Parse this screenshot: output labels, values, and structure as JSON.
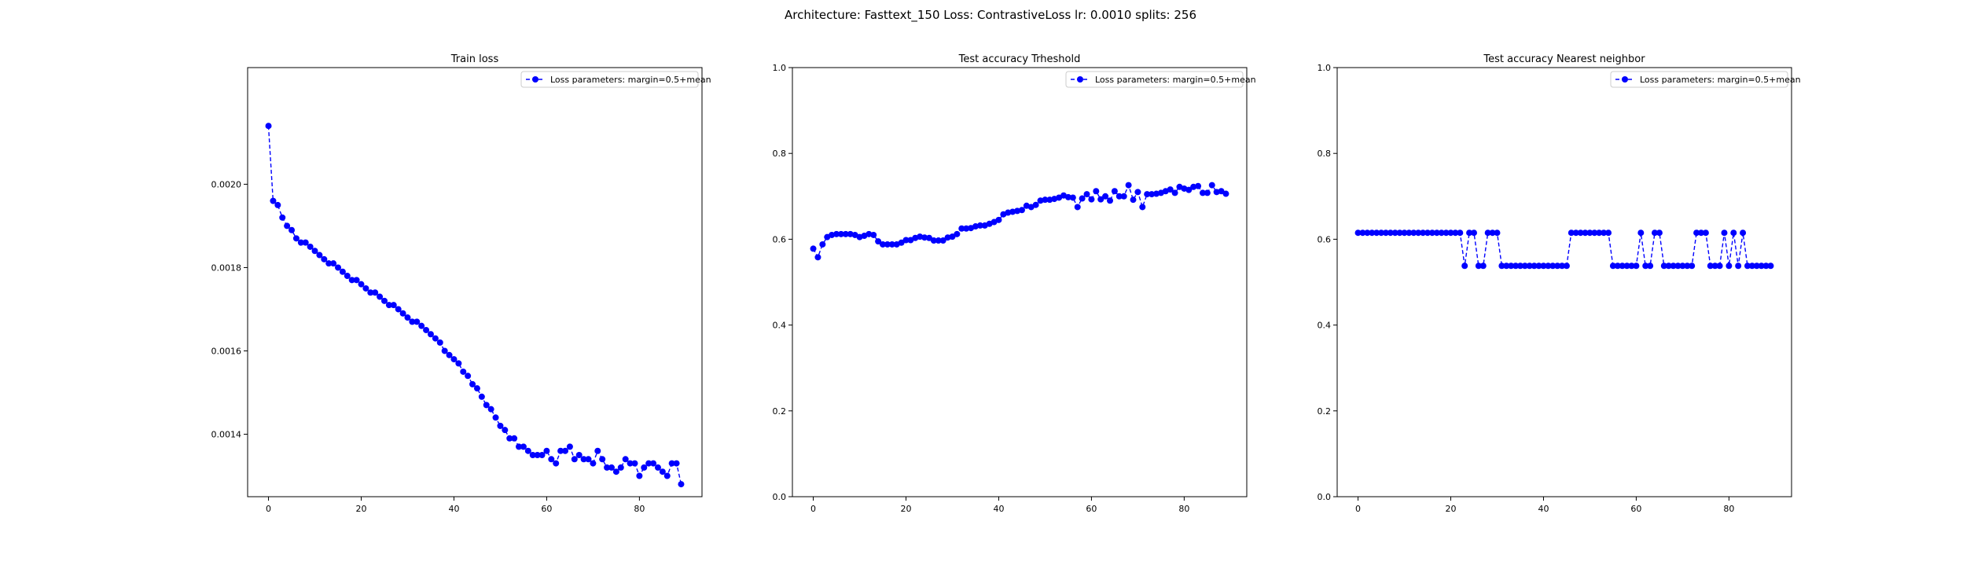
{
  "suptitle": "Architecture: Fasttext_150 Loss: ContrastiveLoss lr: 0.0010 splits: 256",
  "colors": {
    "series": "#0000ff",
    "axes": "#000000",
    "background": "#ffffff"
  },
  "chart_data": [
    {
      "type": "line",
      "title": "Train loss",
      "xlabel": "",
      "ylabel": "",
      "xlim": [
        -4.5,
        93.5
      ],
      "ylim": [
        0.00125,
        0.00228
      ],
      "xticks": [
        0,
        20,
        40,
        60,
        80
      ],
      "xtick_labels": [
        "0",
        "20",
        "40",
        "60",
        "80"
      ],
      "yticks": [
        0.0014,
        0.0016,
        0.0018,
        0.002
      ],
      "ytick_labels": [
        "0.0014",
        "0.0016",
        "0.0018",
        "0.0020"
      ],
      "grid": false,
      "legend_position": "top-right",
      "series": [
        {
          "name": "Loss parameters: margin=0.5+mean",
          "marker": "o",
          "linestyle": "dashed",
          "x": [
            0,
            1,
            2,
            3,
            4,
            5,
            6,
            7,
            8,
            9,
            10,
            11,
            12,
            13,
            14,
            15,
            16,
            17,
            18,
            19,
            20,
            21,
            22,
            23,
            24,
            25,
            26,
            27,
            28,
            29,
            30,
            31,
            32,
            33,
            34,
            35,
            36,
            37,
            38,
            39,
            40,
            41,
            42,
            43,
            44,
            45,
            46,
            47,
            48,
            49,
            50,
            51,
            52,
            53,
            54,
            55,
            56,
            57,
            58,
            59,
            60,
            61,
            62,
            63,
            64,
            65,
            66,
            67,
            68,
            69,
            70,
            71,
            72,
            73,
            74,
            75,
            76,
            77,
            78,
            79,
            80,
            81,
            82,
            83,
            84,
            85,
            86,
            87,
            88,
            89
          ],
          "y": [
            0.00214,
            0.00196,
            0.00195,
            0.00192,
            0.0019,
            0.00189,
            0.00187,
            0.00186,
            0.00186,
            0.00185,
            0.00184,
            0.00183,
            0.00182,
            0.00181,
            0.00181,
            0.0018,
            0.00179,
            0.00178,
            0.00177,
            0.00177,
            0.00176,
            0.00175,
            0.00174,
            0.00174,
            0.00173,
            0.00172,
            0.00171,
            0.00171,
            0.0017,
            0.00169,
            0.00168,
            0.00167,
            0.00167,
            0.00166,
            0.00165,
            0.00164,
            0.00163,
            0.00162,
            0.0016,
            0.00159,
            0.00158,
            0.00157,
            0.00155,
            0.00154,
            0.00152,
            0.00151,
            0.00149,
            0.00147,
            0.00146,
            0.00144,
            0.00142,
            0.00141,
            0.00139,
            0.00139,
            0.00137,
            0.00137,
            0.00136,
            0.00135,
            0.00135,
            0.00135,
            0.00136,
            0.00134,
            0.00133,
            0.00136,
            0.00136,
            0.00137,
            0.00134,
            0.00135,
            0.00134,
            0.00134,
            0.00133,
            0.00136,
            0.00134,
            0.00132,
            0.00132,
            0.00131,
            0.00132,
            0.00134,
            0.00133,
            0.00133,
            0.0013,
            0.00132,
            0.00133,
            0.00133,
            0.00132,
            0.00131,
            0.0013,
            0.00133,
            0.00133,
            0.00128
          ]
        }
      ]
    },
    {
      "type": "line",
      "title": "Test accuracy Trheshold",
      "xlabel": "",
      "ylabel": "",
      "xlim": [
        -4.5,
        93.5
      ],
      "ylim": [
        0.0,
        1.0
      ],
      "xticks": [
        0,
        20,
        40,
        60,
        80
      ],
      "xtick_labels": [
        "0",
        "20",
        "40",
        "60",
        "80"
      ],
      "yticks": [
        0.0,
        0.2,
        0.4,
        0.6,
        0.8,
        1.0
      ],
      "ytick_labels": [
        "0.0",
        "0.2",
        "0.4",
        "0.6",
        "0.8",
        "1.0"
      ],
      "grid": false,
      "legend_position": "top-right",
      "series": [
        {
          "name": "Loss parameters: margin=0.5+mean",
          "marker": "o",
          "linestyle": "dashed",
          "x": [
            0,
            1,
            2,
            3,
            4,
            5,
            6,
            7,
            8,
            9,
            10,
            11,
            12,
            13,
            14,
            15,
            16,
            17,
            18,
            19,
            20,
            21,
            22,
            23,
            24,
            25,
            26,
            27,
            28,
            29,
            30,
            31,
            32,
            33,
            34,
            35,
            36,
            37,
            38,
            39,
            40,
            41,
            42,
            43,
            44,
            45,
            46,
            47,
            48,
            49,
            50,
            51,
            52,
            53,
            54,
            55,
            56,
            57,
            58,
            59,
            60,
            61,
            62,
            63,
            64,
            65,
            66,
            67,
            68,
            69,
            70,
            71,
            72,
            73,
            74,
            75,
            76,
            77,
            78,
            79,
            80,
            81,
            82,
            83,
            84,
            85,
            86,
            87,
            88,
            89
          ],
          "y": [
            0.578,
            0.558,
            0.588,
            0.605,
            0.61,
            0.612,
            0.612,
            0.612,
            0.612,
            0.61,
            0.605,
            0.608,
            0.612,
            0.61,
            0.595,
            0.588,
            0.588,
            0.588,
            0.588,
            0.592,
            0.598,
            0.598,
            0.603,
            0.606,
            0.604,
            0.603,
            0.597,
            0.597,
            0.597,
            0.604,
            0.606,
            0.612,
            0.625,
            0.625,
            0.626,
            0.63,
            0.632,
            0.632,
            0.636,
            0.64,
            0.645,
            0.658,
            0.662,
            0.664,
            0.666,
            0.668,
            0.678,
            0.675,
            0.68,
            0.69,
            0.692,
            0.692,
            0.694,
            0.697,
            0.702,
            0.698,
            0.697,
            0.675,
            0.695,
            0.705,
            0.693,
            0.712,
            0.693,
            0.7,
            0.69,
            0.712,
            0.7,
            0.7,
            0.726,
            0.692,
            0.71,
            0.675,
            0.705,
            0.705,
            0.706,
            0.708,
            0.712,
            0.716,
            0.708,
            0.722,
            0.718,
            0.715,
            0.722,
            0.724,
            0.708,
            0.708,
            0.726,
            0.71,
            0.712,
            0.706
          ]
        }
      ]
    },
    {
      "type": "line",
      "title": "Test accuracy Nearest neighbor",
      "xlabel": "",
      "ylabel": "",
      "xlim": [
        -4.5,
        93.5
      ],
      "ylim": [
        0.0,
        1.0
      ],
      "xticks": [
        0,
        20,
        40,
        60,
        80
      ],
      "xtick_labels": [
        "0",
        "20",
        "40",
        "60",
        "80"
      ],
      "yticks": [
        0.0,
        0.2,
        0.4,
        0.6,
        0.8,
        1.0
      ],
      "ytick_labels": [
        "0.0",
        "0.2",
        "0.4",
        "0.6",
        "0.8",
        "1.0"
      ],
      "grid": false,
      "legend_position": "top-right",
      "series": [
        {
          "name": "Loss parameters: margin=0.5+mean",
          "marker": "o",
          "linestyle": "dashed",
          "x": [
            0,
            1,
            2,
            3,
            4,
            5,
            6,
            7,
            8,
            9,
            10,
            11,
            12,
            13,
            14,
            15,
            16,
            17,
            18,
            19,
            20,
            21,
            22,
            23,
            24,
            25,
            26,
            27,
            28,
            29,
            30,
            31,
            32,
            33,
            34,
            35,
            36,
            37,
            38,
            39,
            40,
            41,
            42,
            43,
            44,
            45,
            46,
            47,
            48,
            49,
            50,
            51,
            52,
            53,
            54,
            55,
            56,
            57,
            58,
            59,
            60,
            61,
            62,
            63,
            64,
            65,
            66,
            67,
            68,
            69,
            70,
            71,
            72,
            73,
            74,
            75,
            76,
            77,
            78,
            79,
            80,
            81,
            82,
            83,
            84,
            85,
            86,
            87,
            88,
            89
          ],
          "y": [
            0.615,
            0.615,
            0.615,
            0.615,
            0.615,
            0.615,
            0.615,
            0.615,
            0.615,
            0.615,
            0.615,
            0.615,
            0.615,
            0.615,
            0.615,
            0.615,
            0.615,
            0.615,
            0.615,
            0.615,
            0.615,
            0.615,
            0.615,
            0.538,
            0.615,
            0.615,
            0.538,
            0.538,
            0.615,
            0.615,
            0.615,
            0.538,
            0.538,
            0.538,
            0.538,
            0.538,
            0.538,
            0.538,
            0.538,
            0.538,
            0.538,
            0.538,
            0.538,
            0.538,
            0.538,
            0.538,
            0.615,
            0.615,
            0.615,
            0.615,
            0.615,
            0.615,
            0.615,
            0.615,
            0.615,
            0.538,
            0.538,
            0.538,
            0.538,
            0.538,
            0.538,
            0.615,
            0.538,
            0.538,
            0.615,
            0.615,
            0.538,
            0.538,
            0.538,
            0.538,
            0.538,
            0.538,
            0.538,
            0.615,
            0.615,
            0.615,
            0.538,
            0.538,
            0.538,
            0.615,
            0.538,
            0.615,
            0.538,
            0.615,
            0.538,
            0.538,
            0.538,
            0.538,
            0.538,
            0.538
          ]
        }
      ]
    }
  ]
}
